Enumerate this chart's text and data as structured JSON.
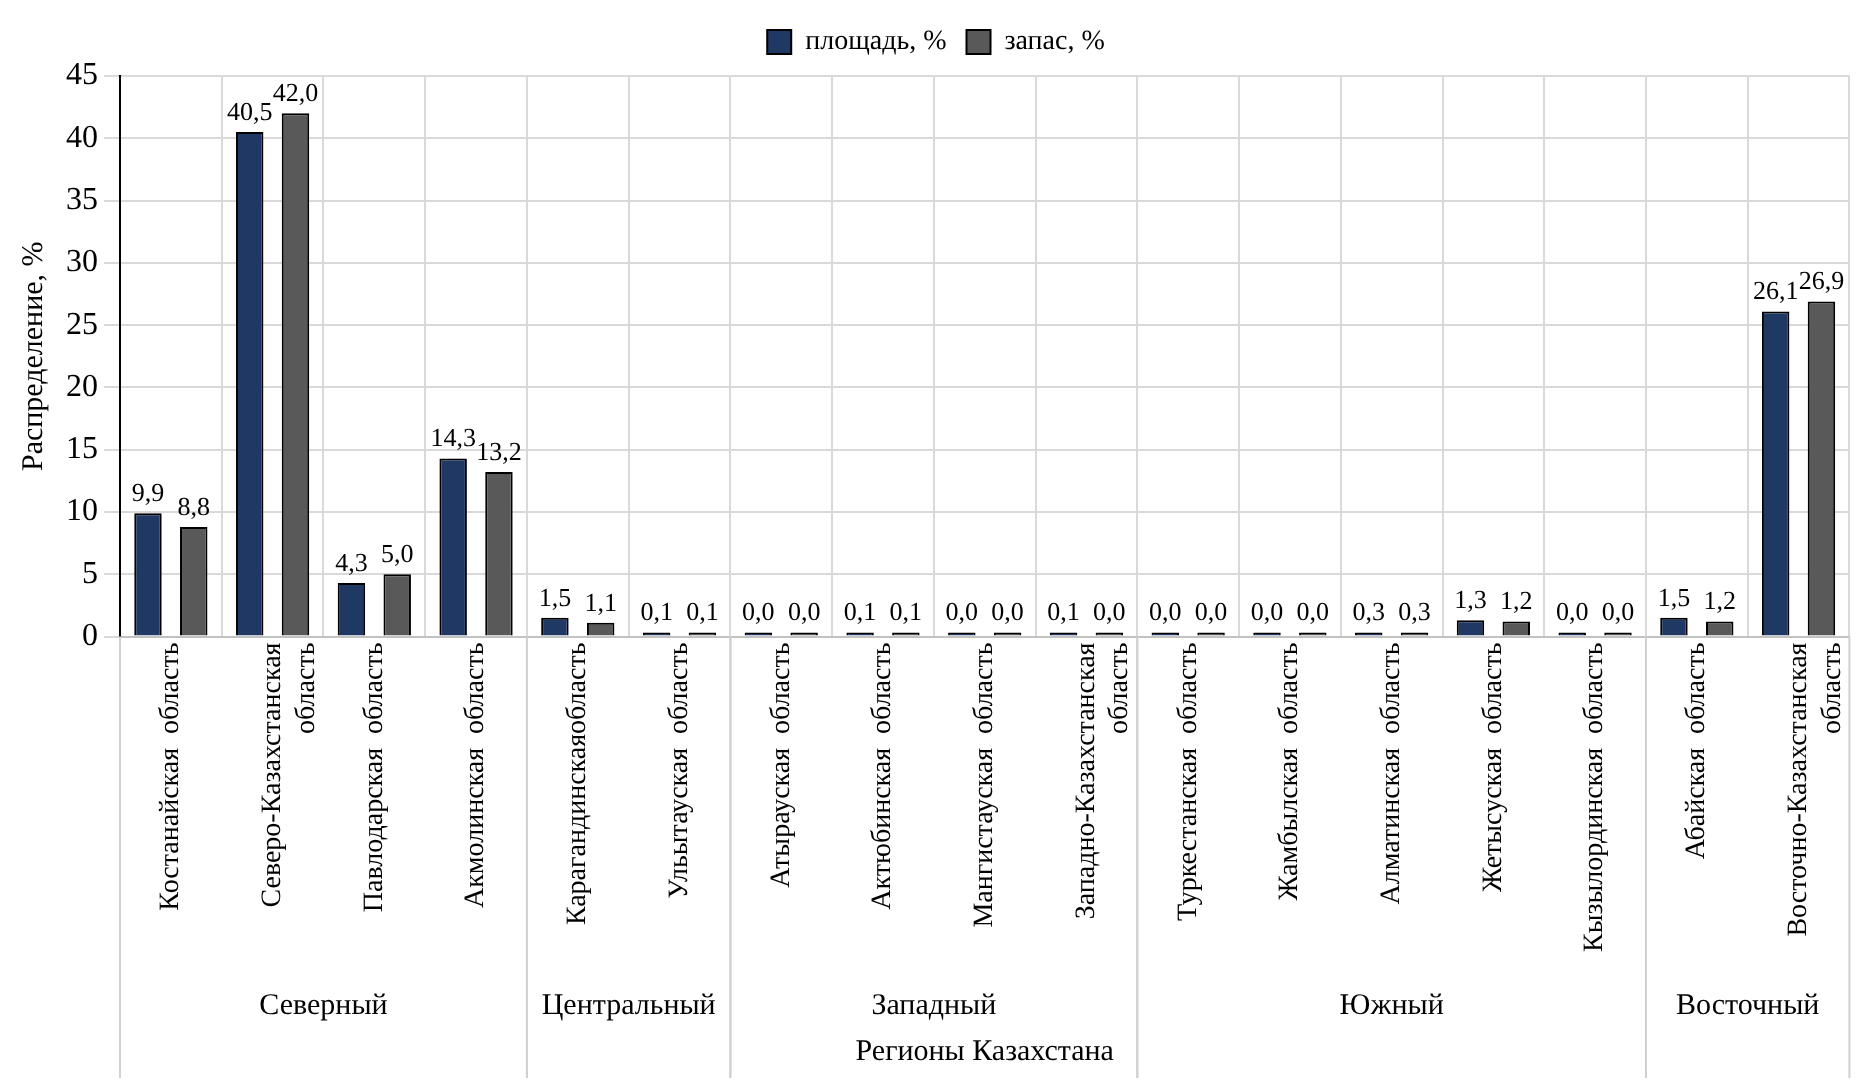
{
  "chart_data": {
    "type": "bar",
    "xlabel": "Регионы Казахстана",
    "ylabel": "Распределение, %",
    "categories": [
      "Костанайская  область",
      "Северо-Казахстанская область",
      "Павлодарская  область",
      "Акмолинская  область",
      "Карагандинскаяобласть",
      "Ульытауская  область",
      "Атырауская  область",
      "Актюбинская  область",
      "Мангистауская  область",
      "Западно-Казахстанская область",
      "Туркестанская  область",
      "Жамбылская  область",
      "Алматинская  область",
      "Жетысуская  область",
      "Кызылординская  область",
      "Абайская  область",
      "Восточно-Казахстанская область"
    ],
    "series": [
      {
        "name": "площадь, %",
        "color": "#1f3864",
        "values": [
          9.9,
          40.5,
          4.3,
          14.3,
          1.5,
          0.1,
          0.0,
          0.1,
          0.0,
          0.1,
          0.0,
          0.0,
          0.3,
          1.3,
          0.0,
          1.5,
          26.1
        ],
        "value_labels": [
          "9,9",
          "40,5",
          "4,3",
          "14,3",
          "1,5",
          "0,1",
          "0,0",
          "0,1",
          "0,0",
          "0,1",
          "0,0",
          "0,0",
          "0,3",
          "1,3",
          "0,0",
          "1,5",
          "26,1"
        ]
      },
      {
        "name": "запас, %",
        "color": "#595959",
        "values": [
          8.8,
          42.0,
          5.0,
          13.2,
          1.1,
          0.1,
          0.0,
          0.1,
          0.0,
          0.0,
          0.0,
          0.0,
          0.3,
          1.2,
          0.0,
          1.2,
          26.9
        ],
        "value_labels": [
          "8,8",
          "42,0",
          "5,0",
          "13,2",
          "1,1",
          "0,1",
          "0,0",
          "0,1",
          "0,0",
          "0,0",
          "0,0",
          "0,0",
          "0,3",
          "1,2",
          "0,0",
          "1,2",
          "26,9"
        ]
      }
    ],
    "ylim": [
      0,
      45
    ],
    "yticks": [
      0,
      5,
      10,
      15,
      20,
      25,
      30,
      35,
      40,
      45
    ],
    "grid": true,
    "legend": "top",
    "annotations": [
      "Северный",
      "Центральный",
      "Западный",
      "Южный",
      "Восточный"
    ]
  }
}
